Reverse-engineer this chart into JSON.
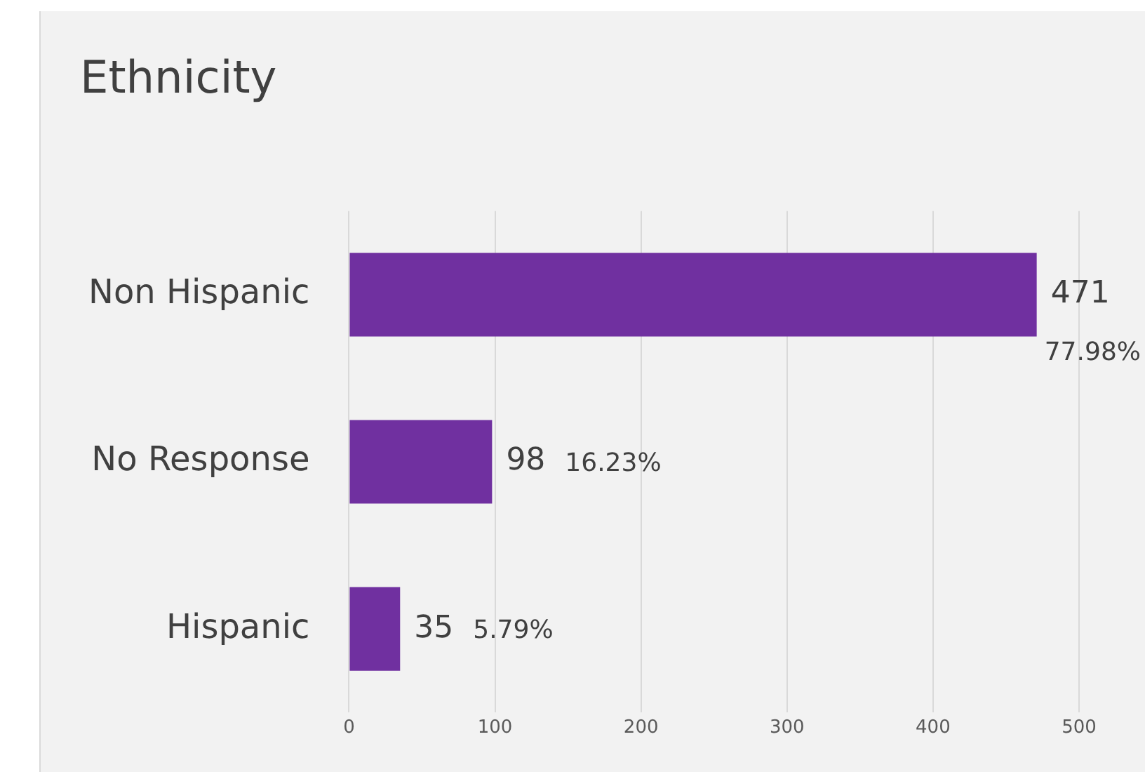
{
  "chart_data": {
    "type": "bar",
    "orientation": "horizontal",
    "title": "Ethnicity",
    "categories": [
      "Non Hispanic",
      "No Response",
      "Hispanic"
    ],
    "values": [
      471,
      98,
      35
    ],
    "color": "#7030a0",
    "value_labels": [
      "471 77.98%",
      "98 16.23%",
      "35 5.79%"
    ],
    "xlim": [
      0,
      500
    ],
    "xticks": [
      0,
      100,
      200,
      300,
      400,
      500
    ],
    "grid": "x",
    "legend": false
  }
}
